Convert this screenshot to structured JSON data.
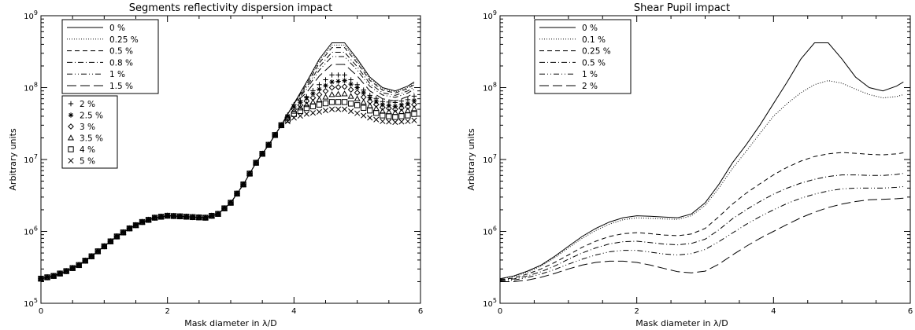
{
  "chart_data": [
    {
      "type": "line",
      "title": "Segments reflectivity dispersion impact",
      "xlabel": "Mask diameter in λ/D",
      "ylabel": "Arbitrary units",
      "xlim": [
        0,
        6
      ],
      "ylim": [
        100000,
        1000000000
      ],
      "yscale": "log",
      "x_ticks": [
        "0",
        "2",
        "4",
        "6"
      ],
      "y_ticks": [
        {
          "base": "10",
          "exp": "5"
        },
        {
          "base": "10",
          "exp": "6"
        },
        {
          "base": "10",
          "exp": "7"
        },
        {
          "base": "10",
          "exp": "8"
        },
        {
          "base": "10",
          "exp": "9"
        }
      ],
      "legend_placement": "top-left",
      "x": [
        0.0,
        0.2,
        0.4,
        0.6,
        0.8,
        1.0,
        1.2,
        1.4,
        1.6,
        1.8,
        2.0,
        2.2,
        2.4,
        2.6,
        2.8,
        3.0,
        3.2,
        3.4,
        3.6,
        3.8,
        4.0,
        4.2,
        4.4,
        4.6,
        4.8,
        5.0,
        5.2,
        5.4,
        5.6,
        5.8,
        5.9
      ],
      "base_values": [
        220000,
        240000,
        280000,
        340000,
        450000,
        620000,
        850000,
        1100000,
        1350000,
        1550000,
        1650000,
        1620000,
        1580000,
        1550000,
        1750000,
        2500000,
        4500000,
        9000000,
        16000000,
        30000000,
        60000000
      ],
      "series": [
        {
          "name": "0 %",
          "style": "solid",
          "values": [
            220000,
            240000,
            280000,
            340000,
            450000,
            620000,
            850000,
            1100000,
            1350000,
            1550000,
            1650000,
            1620000,
            1580000,
            1550000,
            1750000,
            2500000,
            4500000,
            9000000,
            16000000,
            30000000,
            60000000,
            120000000,
            250000000,
            420000000,
            420000000,
            250000000,
            140000000,
            100000000,
            90000000,
            105000000,
            120000000
          ]
        },
        {
          "name": "0.25 %",
          "style": "dotted",
          "values": [
            220000,
            240000,
            280000,
            340000,
            450000,
            620000,
            850000,
            1100000,
            1350000,
            1550000,
            1650000,
            1620000,
            1580000,
            1550000,
            1750000,
            2500000,
            4500000,
            9000000,
            16000000,
            30000000,
            60000000,
            115000000,
            235000000,
            390000000,
            390000000,
            235000000,
            133000000,
            96000000,
            87000000,
            101000000,
            115000000
          ]
        },
        {
          "name": "0.5 %",
          "style": "dashed",
          "values": [
            220000,
            240000,
            280000,
            340000,
            450000,
            620000,
            850000,
            1100000,
            1350000,
            1550000,
            1650000,
            1620000,
            1580000,
            1550000,
            1750000,
            2500000,
            4500000,
            9000000,
            16000000,
            30000000,
            60000000,
            110000000,
            220000000,
            360000000,
            360000000,
            220000000,
            126000000,
            92000000,
            84000000,
            97000000,
            110000000
          ]
        },
        {
          "name": "0.8 %",
          "style": "dashdot",
          "values": [
            220000,
            240000,
            280000,
            340000,
            450000,
            620000,
            850000,
            1100000,
            1350000,
            1550000,
            1650000,
            1620000,
            1580000,
            1550000,
            1750000,
            2500000,
            4500000,
            9000000,
            16000000,
            30000000,
            60000000,
            102000000,
            195000000,
            310000000,
            310000000,
            195000000,
            114000000,
            85000000,
            78000000,
            90000000,
            102000000
          ]
        },
        {
          "name": "1 %",
          "style": "dashdotdot",
          "values": [
            220000,
            240000,
            280000,
            340000,
            450000,
            620000,
            850000,
            1100000,
            1350000,
            1550000,
            1650000,
            1620000,
            1580000,
            1550000,
            1750000,
            2500000,
            4500000,
            9000000,
            16000000,
            30000000,
            60000000,
            95000000,
            175000000,
            270000000,
            270000000,
            175000000,
            104000000,
            79000000,
            73000000,
            84000000,
            95000000
          ]
        },
        {
          "name": "1.5 %",
          "style": "longdash",
          "values": [
            220000,
            240000,
            280000,
            340000,
            450000,
            620000,
            850000,
            1100000,
            1350000,
            1550000,
            1650000,
            1620000,
            1580000,
            1550000,
            1750000,
            2500000,
            4500000,
            9000000,
            16000000,
            30000000,
            60000000,
            85000000,
            145000000,
            210000000,
            210000000,
            145000000,
            90000000,
            70000000,
            65000000,
            75000000,
            85000000
          ]
        },
        {
          "name": "2 %",
          "style": "plus",
          "values": [
            220000,
            240000,
            280000,
            340000,
            450000,
            620000,
            850000,
            1100000,
            1350000,
            1550000,
            1650000,
            1620000,
            1580000,
            1550000,
            1750000,
            2500000,
            4500000,
            9000000,
            16000000,
            30000000,
            58000000,
            75000000,
            110000000,
            150000000,
            150000000,
            110000000,
            78000000,
            64000000,
            62000000,
            68000000,
            76000000
          ]
        },
        {
          "name": "2.5 %",
          "style": "asterisk",
          "values": [
            220000,
            240000,
            280000,
            340000,
            450000,
            620000,
            850000,
            1100000,
            1350000,
            1550000,
            1650000,
            1620000,
            1580000,
            1550000,
            1750000,
            2500000,
            4500000,
            9000000,
            16000000,
            30000000,
            54000000,
            72000000,
            95000000,
            120000000,
            125000000,
            100000000,
            72000000,
            58000000,
            55000000,
            60000000,
            66000000
          ]
        },
        {
          "name": "3 %",
          "style": "diamond",
          "values": [
            220000,
            240000,
            280000,
            340000,
            450000,
            620000,
            850000,
            1100000,
            1350000,
            1550000,
            1650000,
            1620000,
            1580000,
            1550000,
            1750000,
            2500000,
            4500000,
            9000000,
            16000000,
            30000000,
            50000000,
            65000000,
            80000000,
            100000000,
            103000000,
            85000000,
            64000000,
            53000000,
            50000000,
            54000000,
            58000000
          ]
        },
        {
          "name": "3.5 %",
          "style": "triangle",
          "values": [
            220000,
            240000,
            280000,
            340000,
            450000,
            620000,
            850000,
            1100000,
            1350000,
            1550000,
            1650000,
            1620000,
            1580000,
            1550000,
            1750000,
            2500000,
            4500000,
            9000000,
            16000000,
            30000000,
            47000000,
            58000000,
            68000000,
            80000000,
            82000000,
            70000000,
            56000000,
            47000000,
            45000000,
            48000000,
            51000000
          ]
        },
        {
          "name": "4 %",
          "style": "square",
          "values": [
            220000,
            240000,
            280000,
            340000,
            450000,
            620000,
            850000,
            1100000,
            1350000,
            1550000,
            1650000,
            1620000,
            1580000,
            1550000,
            1750000,
            2500000,
            4500000,
            9000000,
            16000000,
            30000000,
            43000000,
            52000000,
            58000000,
            63000000,
            63000000,
            57000000,
            48000000,
            41000000,
            39000000,
            41000000,
            43000000
          ]
        },
        {
          "name": "5 %",
          "style": "cross",
          "values": [
            220000,
            240000,
            280000,
            340000,
            450000,
            620000,
            850000,
            1100000,
            1350000,
            1550000,
            1650000,
            1620000,
            1580000,
            1550000,
            1750000,
            2500000,
            4500000,
            9000000,
            16000000,
            30000000,
            38000000,
            43000000,
            46000000,
            50000000,
            50000000,
            44000000,
            38000000,
            34000000,
            33000000,
            34000000,
            35000000
          ]
        }
      ]
    },
    {
      "type": "line",
      "title": "Shear Pupil impact",
      "xlabel": "Mask diameter in λ/D",
      "ylabel": "Arbitrary units",
      "xlim": [
        0,
        6
      ],
      "ylim": [
        100000,
        1000000000
      ],
      "yscale": "log",
      "x_ticks": [
        "0",
        "2",
        "4",
        "6"
      ],
      "y_ticks": [
        {
          "base": "10",
          "exp": "5"
        },
        {
          "base": "10",
          "exp": "6"
        },
        {
          "base": "10",
          "exp": "7"
        },
        {
          "base": "10",
          "exp": "8"
        },
        {
          "base": "10",
          "exp": "9"
        }
      ],
      "legend_placement": "top-left",
      "x": [
        0.0,
        0.2,
        0.4,
        0.6,
        0.8,
        1.0,
        1.2,
        1.4,
        1.6,
        1.8,
        2.0,
        2.2,
        2.4,
        2.6,
        2.8,
        3.0,
        3.2,
        3.4,
        3.6,
        3.8,
        4.0,
        4.2,
        4.4,
        4.6,
        4.8,
        5.0,
        5.2,
        5.4,
        5.6,
        5.8,
        5.9
      ],
      "series": [
        {
          "name": "0 %",
          "style": "solid",
          "values": [
            220000,
            240000,
            280000,
            340000,
            450000,
            620000,
            850000,
            1100000,
            1350000,
            1550000,
            1650000,
            1620000,
            1580000,
            1550000,
            1750000,
            2500000,
            4500000,
            9000000,
            16000000,
            30000000,
            60000000,
            120000000,
            250000000,
            420000000,
            420000000,
            250000000,
            140000000,
            100000000,
            90000000,
            105000000,
            120000000
          ]
        },
        {
          "name": "0.1 %",
          "style": "dotted",
          "values": [
            220000,
            235000,
            270000,
            330000,
            430000,
            590000,
            800000,
            1030000,
            1260000,
            1450000,
            1540000,
            1520000,
            1490000,
            1470000,
            1650000,
            2300000,
            4000000,
            7500000,
            13000000,
            23000000,
            40000000,
            60000000,
            85000000,
            110000000,
            125000000,
            115000000,
            95000000,
            80000000,
            72000000,
            75000000,
            80000000
          ]
        },
        {
          "name": "0.25 %",
          "style": "dashed",
          "values": [
            215000,
            225000,
            255000,
            300000,
            370000,
            470000,
            600000,
            730000,
            850000,
            930000,
            960000,
            930000,
            890000,
            870000,
            920000,
            1100000,
            1600000,
            2400000,
            3400000,
            4600000,
            6100000,
            7800000,
            9500000,
            11000000,
            12000000,
            12500000,
            12200000,
            11800000,
            11600000,
            12000000,
            12400000
          ]
        },
        {
          "name": "0.5 %",
          "style": "dashdot",
          "values": [
            210000,
            218000,
            240000,
            275000,
            330000,
            410000,
            500000,
            590000,
            670000,
            720000,
            730000,
            700000,
            665000,
            650000,
            680000,
            780000,
            1050000,
            1500000,
            2000000,
            2600000,
            3300000,
            4000000,
            4700000,
            5300000,
            5800000,
            6100000,
            6100000,
            6000000,
            6000000,
            6200000,
            6400000
          ]
        },
        {
          "name": "1 %",
          "style": "dashdotdot",
          "values": [
            205000,
            210000,
            228000,
            255000,
            295000,
            350000,
            410000,
            470000,
            520000,
            545000,
            545000,
            515000,
            485000,
            470000,
            490000,
            560000,
            720000,
            950000,
            1250000,
            1600000,
            2000000,
            2450000,
            2900000,
            3300000,
            3650000,
            3900000,
            4000000,
            4000000,
            4000000,
            4100000,
            4200000
          ]
        },
        {
          "name": "2 %",
          "style": "longdash",
          "values": [
            200000,
            200000,
            210000,
            230000,
            260000,
            300000,
            340000,
            370000,
            385000,
            385000,
            370000,
            340000,
            305000,
            275000,
            265000,
            280000,
            350000,
            470000,
            620000,
            800000,
            1000000,
            1250000,
            1550000,
            1850000,
            2150000,
            2400000,
            2600000,
            2750000,
            2800000,
            2850000,
            2900000
          ]
        }
      ]
    }
  ]
}
